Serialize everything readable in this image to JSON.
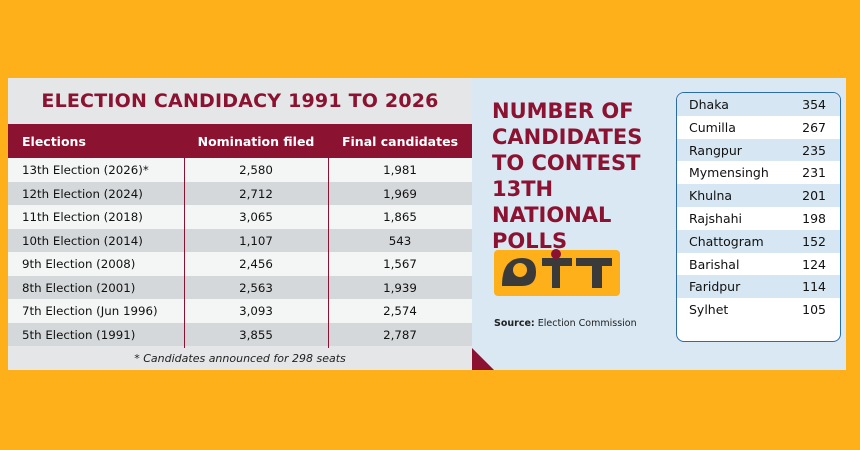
{
  "chart_data": [
    {
      "type": "table",
      "title": "ELECTION CANDIDACY 1991 TO 2026",
      "columns": [
        "Elections",
        "Nomination filed",
        "Final candidates"
      ],
      "rows": [
        {
          "election": "13th Election (2026)*",
          "nomination": "2,580",
          "final": "1,981"
        },
        {
          "election": "12th Election (2024)",
          "nomination": "2,712",
          "final": "1,969"
        },
        {
          "election": "11th Election (2018)",
          "nomination": "3,065",
          "final": "1,865"
        },
        {
          "election": "10th Election (2014)",
          "nomination": "1,107",
          "final": "543"
        },
        {
          "election": "9th Election (2008)",
          "nomination": "2,456",
          "final": "1,567"
        },
        {
          "election": "8th Election (2001)",
          "nomination": "2,563",
          "final": "1,939"
        },
        {
          "election": "7th Election (Jun 1996)",
          "nomination": "3,093",
          "final": "2,574"
        },
        {
          "election": "5th Election (1991)",
          "nomination": "3,855",
          "final": "2,787"
        }
      ],
      "footnote": "* Candidates announced for 298 seats"
    },
    {
      "type": "table",
      "title": "NUMBER OF CANDIDATES TO CONTEST 13TH NATIONAL POLLS",
      "rows": [
        {
          "division": "Dhaka",
          "count": "354"
        },
        {
          "division": "Cumilla",
          "count": "267"
        },
        {
          "division": "Rangpur",
          "count": "235"
        },
        {
          "division": "Mymensingh",
          "count": "231"
        },
        {
          "division": "Khulna",
          "count": "201"
        },
        {
          "division": "Rajshahi",
          "count": "198"
        },
        {
          "division": "Chattogram",
          "count": "152"
        },
        {
          "division": "Barishal",
          "count": "124"
        },
        {
          "division": "Faridpur",
          "count": "114"
        },
        {
          "division": "Sylhet",
          "count": "105"
        }
      ]
    }
  ],
  "source_label": "Source:",
  "source_value": "Election Commission",
  "logo_icon": "ekhon-logo",
  "colors": {
    "background": "#FDB01A",
    "maroon": "#8B1230",
    "panel_blue": "#D9E8F3",
    "box_border": "#2B6CA8"
  }
}
